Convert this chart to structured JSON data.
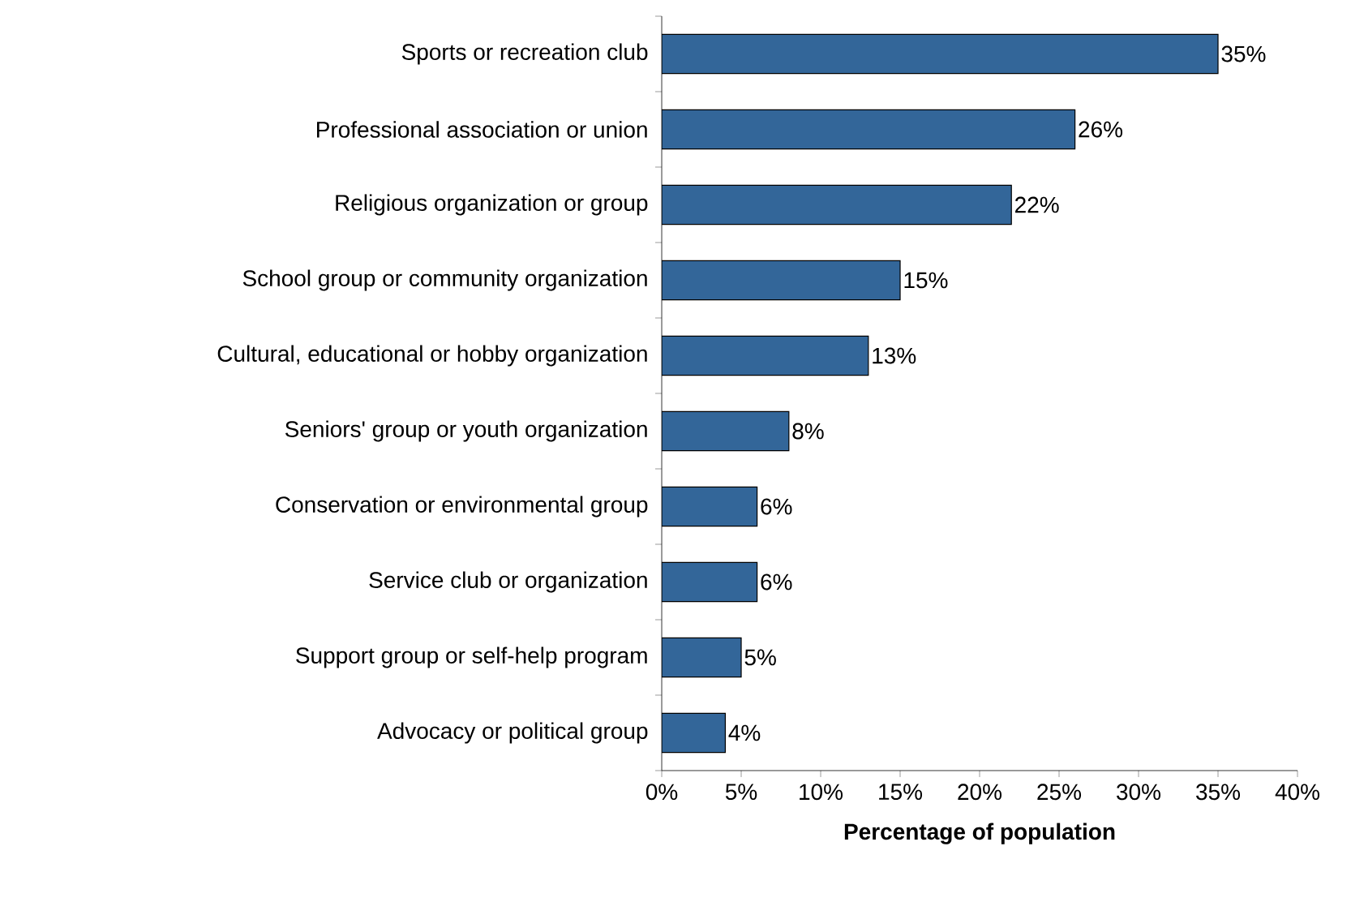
{
  "chart_data": {
    "type": "bar",
    "orientation": "horizontal",
    "xlabel": "Percentage of population",
    "categories": [
      "Sports or recreation club",
      "Professional association or union",
      "Religious organization or group",
      "School group or community organization",
      "Cultural, educational or hobby organization",
      "Seniors' group or youth organization",
      "Conservation or environmental group",
      "Service club or organization",
      "Support group or self-help program",
      "Advocacy or political group"
    ],
    "values": [
      35,
      26,
      22,
      15,
      13,
      8,
      6,
      6,
      5,
      4
    ],
    "value_labels": [
      "35%",
      "26%",
      "22%",
      "15%",
      "13%",
      "8%",
      "6%",
      "6%",
      "5%",
      "4%"
    ],
    "color": "#336699",
    "xlim": [
      0,
      40
    ],
    "xticks": [
      {
        "value": 0,
        "label": "0%"
      },
      {
        "value": 5,
        "label": "5%"
      },
      {
        "value": 10,
        "label": "10%"
      },
      {
        "value": 15,
        "label": "15%"
      },
      {
        "value": 20,
        "label": "20%"
      },
      {
        "value": 25,
        "label": "25%"
      },
      {
        "value": 30,
        "label": "30%"
      },
      {
        "value": 35,
        "label": "35%"
      },
      {
        "value": 40,
        "label": "40%"
      }
    ],
    "grid": false
  }
}
